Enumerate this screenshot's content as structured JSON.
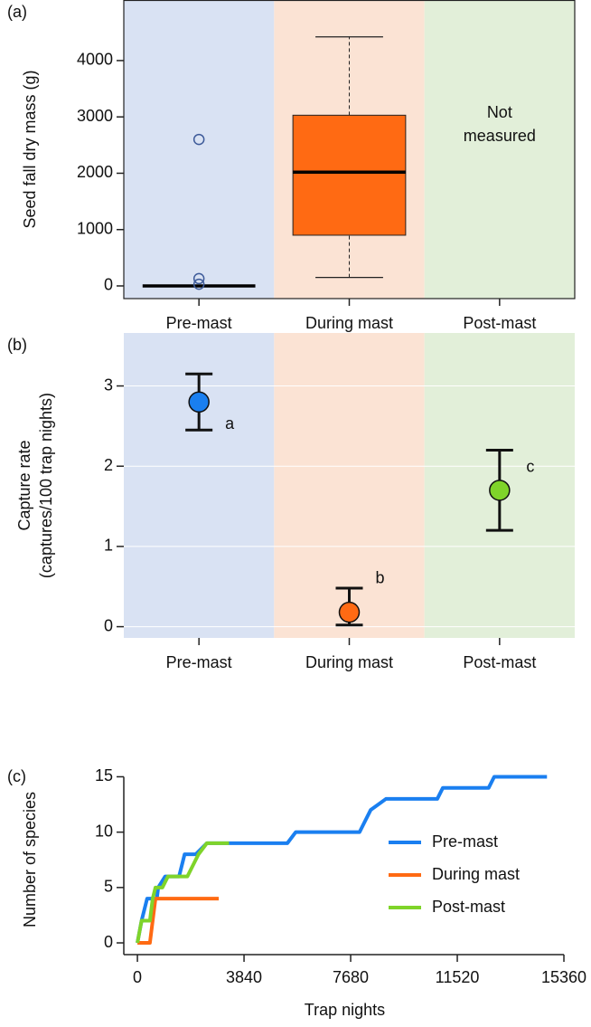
{
  "chart_data": [
    {
      "type": "box",
      "panel_label": "(a)",
      "ylabel": [
        "Seed fall dry mass (g)"
      ],
      "categories": [
        "Pre-mast",
        "During mast",
        "Post-mast"
      ],
      "band_colors": [
        "#d9e2f3",
        "#fbe3d4",
        "#e2efd9"
      ],
      "colors": [
        "#3d5a99",
        "#ff6a13",
        "#7fd42a"
      ],
      "boxes": [
        {
          "min": 0,
          "q1": 0,
          "median": 0,
          "q3": 0,
          "max": 0,
          "outliers": [
            2600,
            130,
            30
          ]
        },
        {
          "min": 150,
          "q1": 900,
          "median": 2020,
          "q3": 3030,
          "max": 4420,
          "outliers": []
        },
        null
      ],
      "annotation": [
        "Not",
        "measured"
      ],
      "ylim": [
        -225,
        5075
      ],
      "yticks": [
        0,
        1000,
        2000,
        3000,
        4000
      ]
    },
    {
      "type": "errorpoint",
      "panel_label": "(b)",
      "ylabel": [
        "Capture rate",
        "(captures/100 trap nights)"
      ],
      "categories": [
        "Pre-mast",
        "During mast",
        "Post-mast"
      ],
      "band_colors": [
        "#d9e2f3",
        "#fbe3d4",
        "#e2efd9"
      ],
      "colors": [
        "#1a7ff0",
        "#ff6a13",
        "#7fd42a"
      ],
      "values": [
        2.8,
        0.18,
        1.7
      ],
      "lower": [
        2.45,
        0.02,
        1.2
      ],
      "upper": [
        3.15,
        0.48,
        2.2
      ],
      "annotations": [
        "a",
        "b",
        "c"
      ],
      "ylim": [
        -0.14,
        3.66
      ],
      "yticks": [
        0,
        1,
        2,
        3
      ],
      "grid": true
    },
    {
      "type": "line",
      "panel_label": "(c)",
      "ylabel": [
        "Number of species"
      ],
      "xlabel": "Trap nights",
      "series": [
        {
          "name": "Pre-mast",
          "color": "#1a7ff0",
          "x": [
            0,
            150,
            350,
            700,
            750,
            1000,
            1500,
            1700,
            2100,
            2500,
            5400,
            5700,
            8000,
            8200,
            8400,
            8950,
            10800,
            11000,
            12650,
            12850,
            14750
          ],
          "values": [
            0,
            2,
            4,
            4,
            5,
            6,
            6,
            8,
            8,
            9,
            9,
            10,
            10,
            11,
            12,
            13,
            13,
            14,
            14,
            15,
            15
          ]
        },
        {
          "name": "During mast",
          "color": "#ff6a13",
          "x": [
            0,
            450,
            650,
            2930
          ],
          "values": [
            0,
            0,
            4,
            4
          ]
        },
        {
          "name": "Post-mast",
          "color": "#7fd42a",
          "x": [
            0,
            150,
            450,
            550,
            650,
            900,
            1100,
            1800,
            2200,
            2500,
            3300
          ],
          "values": [
            0,
            2,
            2,
            4,
            5,
            5,
            6,
            6,
            8,
            9,
            9
          ]
        }
      ],
      "legend": "lower right",
      "xlim": [
        -490,
        15750
      ],
      "xticks": [
        0,
        3840,
        7680,
        11520,
        15360
      ],
      "ylim": [
        -1.06,
        16.1
      ],
      "yticks": [
        0,
        5,
        10,
        15
      ]
    }
  ]
}
